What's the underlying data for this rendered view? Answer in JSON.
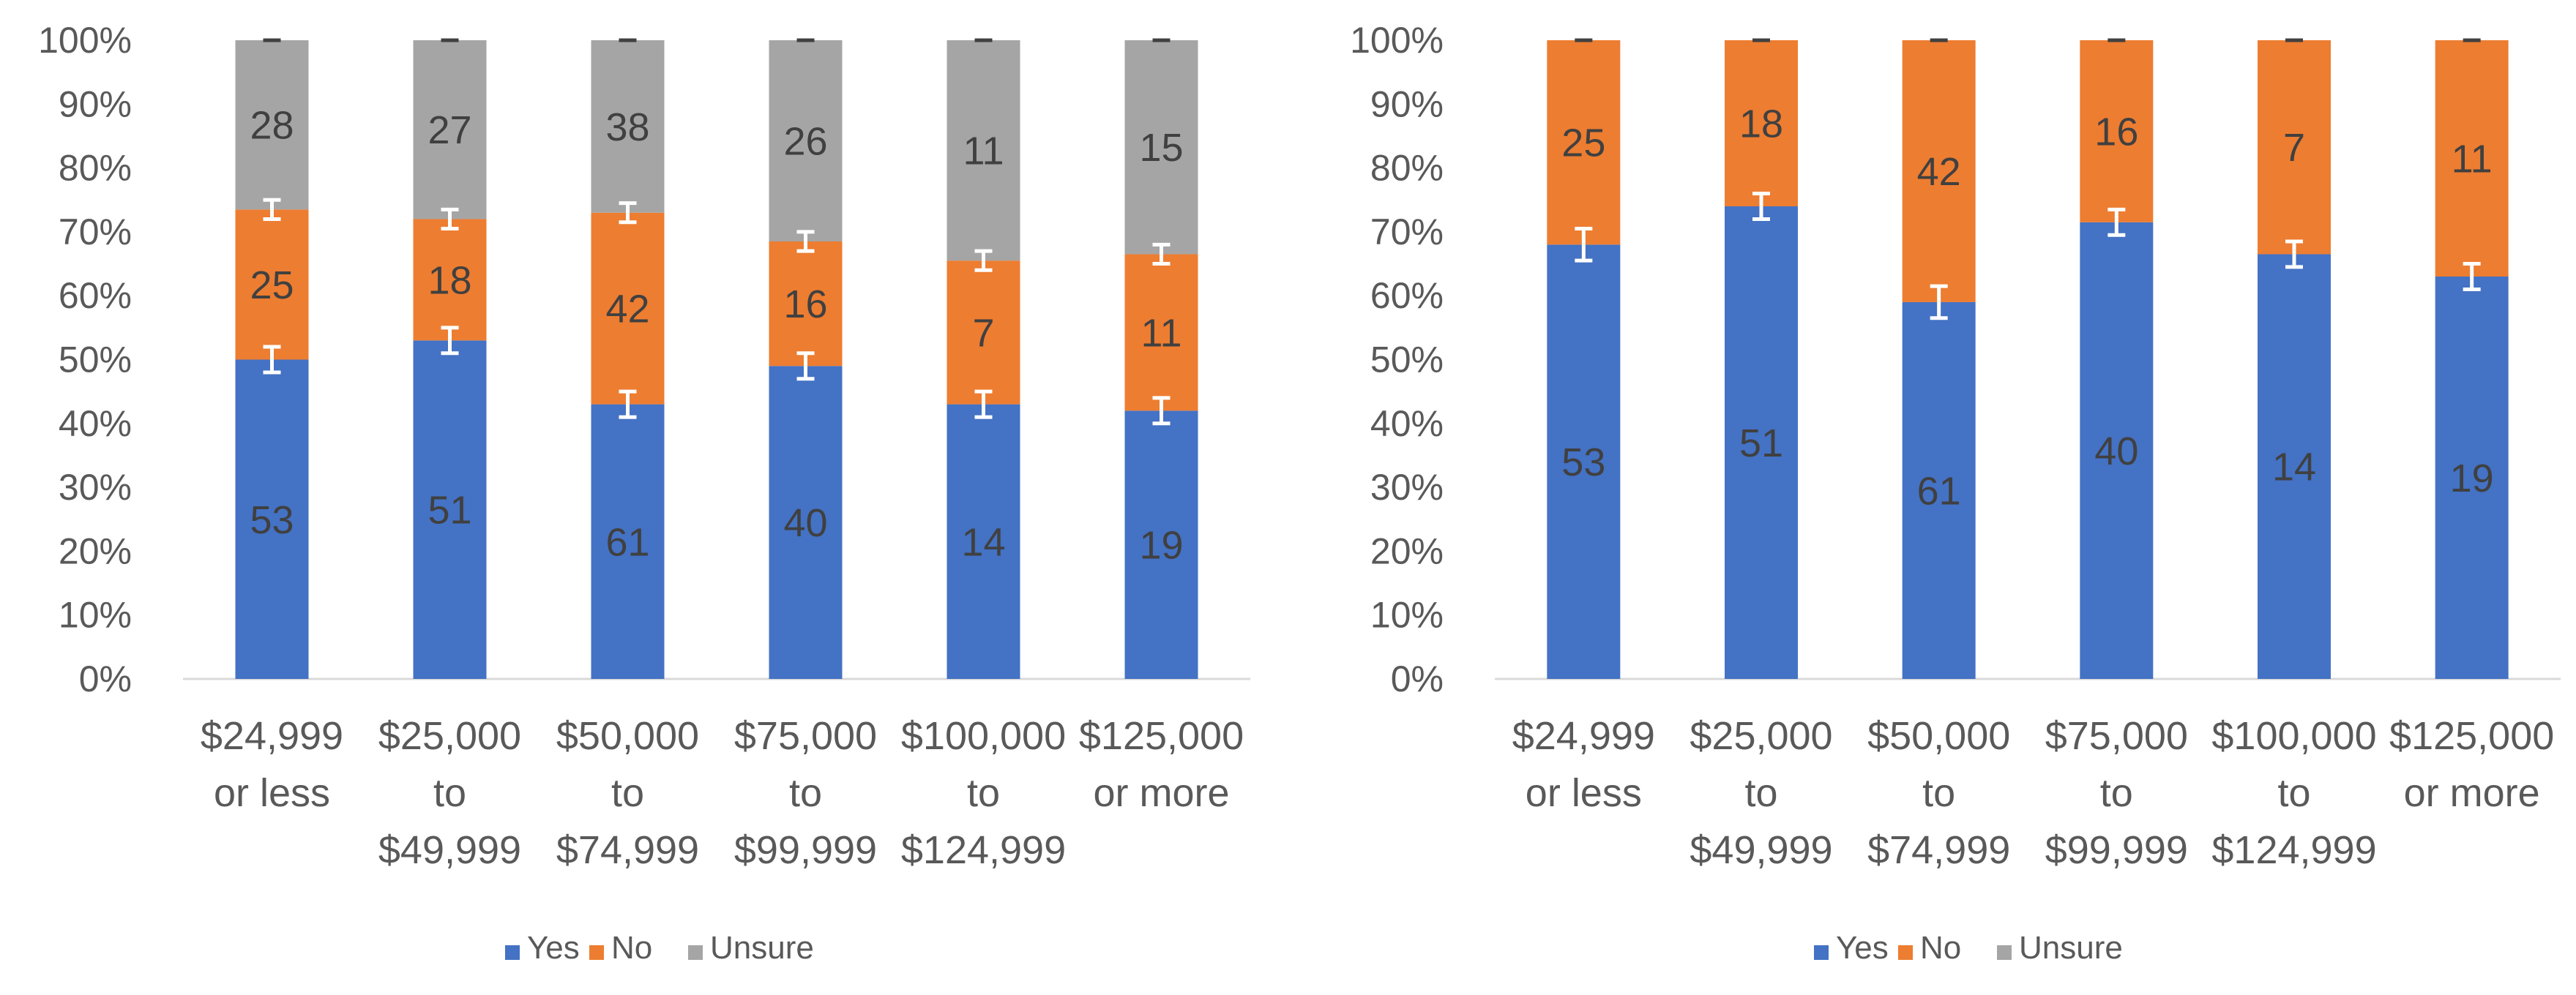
{
  "chart_data": [
    {
      "type": "bar",
      "stacked": true,
      "categories": [
        [
          "$24,999",
          "or less"
        ],
        [
          "$25,000",
          "to",
          "$49,999"
        ],
        [
          "$50,000",
          "to",
          "$74,999"
        ],
        [
          "$75,000",
          "to",
          "$99,999"
        ],
        [
          "$100,000",
          "to",
          "$124,999"
        ],
        [
          "$125,000",
          "or more"
        ]
      ],
      "yticks": [
        "0%",
        "10%",
        "20%",
        "30%",
        "40%",
        "50%",
        "60%",
        "70%",
        "80%",
        "90%",
        "100%"
      ],
      "ylim": [
        0,
        100
      ],
      "series": [
        {
          "name": "Yes",
          "color": "#4472C4",
          "values": [
            50,
            53,
            43,
            49,
            43,
            42
          ],
          "labels": [
            "53",
            "51",
            "61",
            "40",
            "14",
            "19"
          ],
          "error": [
            2,
            2,
            2,
            2,
            2,
            2
          ]
        },
        {
          "name": "No",
          "color": "#ED7D31",
          "values": [
            23.5,
            19,
            30,
            19.5,
            22.5,
            24.5
          ],
          "labels": [
            "25",
            "18",
            "42",
            "16",
            "7",
            "11"
          ],
          "error": [
            1.5,
            1.5,
            1.5,
            1.5,
            1.5,
            1.5
          ]
        },
        {
          "name": "Unsure",
          "color": "#A5A5A5",
          "values": [
            26.5,
            28,
            27,
            31.5,
            34.5,
            33.5
          ],
          "labels": [
            "28",
            "27",
            "38",
            "26",
            "11",
            "15"
          ],
          "error": [
            0,
            0,
            0,
            0,
            0,
            0
          ]
        }
      ],
      "legend": {
        "position": "bottom",
        "items": [
          "Yes",
          "No",
          "Unsure"
        ]
      }
    },
    {
      "type": "bar",
      "stacked": true,
      "categories": [
        [
          "$24,999",
          "or less"
        ],
        [
          "$25,000",
          "to",
          "$49,999"
        ],
        [
          "$50,000",
          "to",
          "$74,999"
        ],
        [
          "$75,000",
          "to",
          "$99,999"
        ],
        [
          "$100,000",
          "to",
          "$124,999"
        ],
        [
          "$125,000",
          "or more"
        ]
      ],
      "yticks": [
        "0%",
        "10%",
        "20%",
        "30%",
        "40%",
        "50%",
        "60%",
        "70%",
        "80%",
        "90%",
        "100%"
      ],
      "ylim": [
        0,
        100
      ],
      "series": [
        {
          "name": "Yes",
          "color": "#4472C4",
          "values": [
            68,
            74,
            59,
            71.5,
            66.5,
            63
          ],
          "labels": [
            "53",
            "51",
            "61",
            "40",
            "14",
            "19"
          ],
          "error": [
            2.5,
            2,
            2.5,
            2,
            2,
            2
          ]
        },
        {
          "name": "No",
          "color": "#ED7D31",
          "values": [
            32,
            26,
            41,
            28.5,
            33.5,
            37
          ],
          "labels": [
            "25",
            "18",
            "42",
            "16",
            "7",
            "11"
          ],
          "error": [
            0,
            0,
            0,
            0,
            0,
            0
          ]
        }
      ],
      "legend": {
        "position": "bottom",
        "items": [
          "Yes",
          "No",
          "Unsure"
        ],
        "colors": [
          "#4472C4",
          "#ED7D31",
          "#A5A5A5"
        ]
      }
    }
  ]
}
